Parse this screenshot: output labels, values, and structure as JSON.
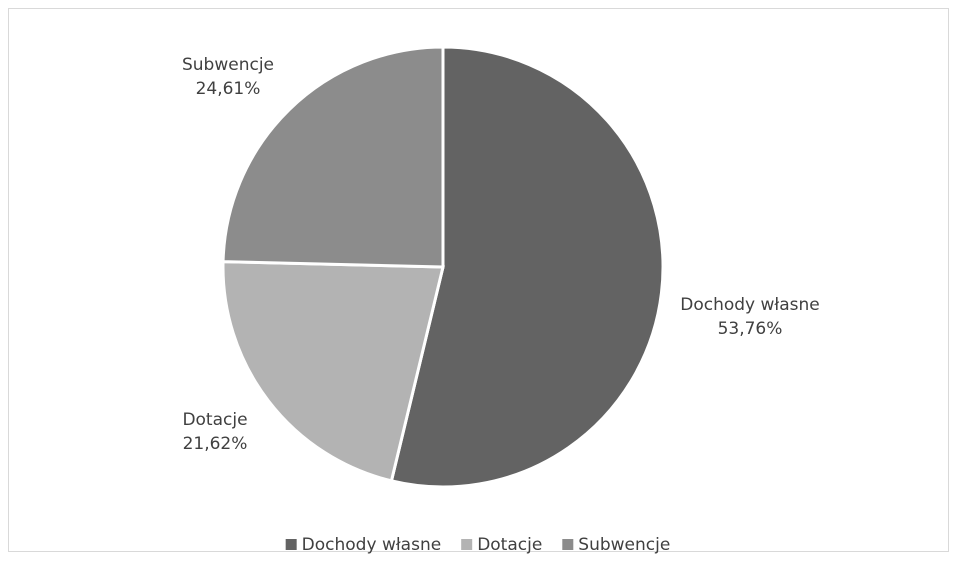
{
  "chart_data": {
    "type": "pie",
    "categories": [
      "Dochody własne",
      "Dotacje",
      "Subwencje"
    ],
    "values": [
      53.76,
      21.62,
      24.61
    ],
    "value_labels": [
      "53,76%",
      "21,62%",
      "24,61%"
    ],
    "colors": [
      "#636363",
      "#b3b3b3",
      "#8c8c8c"
    ],
    "legend": "bottom"
  }
}
